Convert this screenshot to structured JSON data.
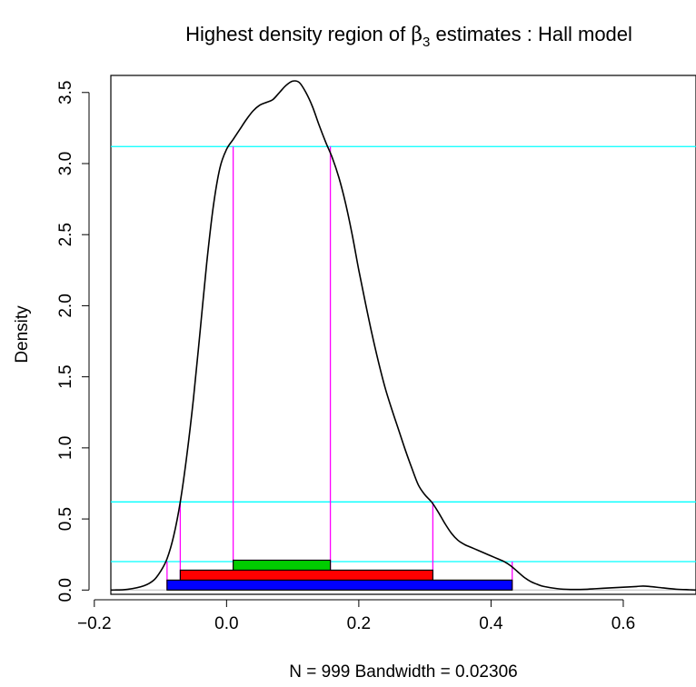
{
  "chart_data": {
    "type": "area",
    "title_main": "Highest density region of ",
    "title_symbol": "β",
    "title_subscript": "3",
    "title_rest": " estimates : Hall model",
    "xlabel": "N = 999   Bandwidth = 0.02306",
    "ylabel": "Density",
    "xlim": [
      -0.175,
      0.71
    ],
    "ylim": [
      -0.03,
      3.62
    ],
    "x_ticks": [
      -0.2,
      0.0,
      0.2,
      0.4,
      0.6
    ],
    "x_tick_labels": [
      "−0.2",
      "0.0",
      "0.2",
      "0.4",
      "0.6"
    ],
    "y_ticks": [
      0.0,
      0.5,
      1.0,
      1.5,
      2.0,
      2.5,
      3.0,
      3.5
    ],
    "y_tick_labels": [
      "0.0",
      "0.5",
      "1.0",
      "1.5",
      "2.0",
      "2.5",
      "3.0",
      "3.5"
    ],
    "density_curve": {
      "x": [
        -0.175,
        -0.15,
        -0.125,
        -0.11,
        -0.1,
        -0.09,
        -0.08,
        -0.07,
        -0.06,
        -0.05,
        -0.04,
        -0.03,
        -0.02,
        -0.01,
        0.0,
        0.01,
        0.02,
        0.03,
        0.04,
        0.05,
        0.06,
        0.07,
        0.08,
        0.09,
        0.1,
        0.11,
        0.12,
        0.13,
        0.14,
        0.15,
        0.16,
        0.17,
        0.18,
        0.19,
        0.2,
        0.21,
        0.22,
        0.23,
        0.24,
        0.25,
        0.26,
        0.27,
        0.28,
        0.29,
        0.3,
        0.31,
        0.32,
        0.33,
        0.34,
        0.35,
        0.36,
        0.37,
        0.38,
        0.39,
        0.4,
        0.41,
        0.42,
        0.43,
        0.44,
        0.45,
        0.46,
        0.47,
        0.48,
        0.5,
        0.52,
        0.54,
        0.56,
        0.58,
        0.6,
        0.62,
        0.63,
        0.64,
        0.66,
        0.68,
        0.7,
        0.71
      ],
      "y": [
        0.0,
        0.005,
        0.03,
        0.07,
        0.13,
        0.22,
        0.38,
        0.62,
        0.95,
        1.35,
        1.82,
        2.3,
        2.7,
        2.97,
        3.1,
        3.17,
        3.24,
        3.31,
        3.37,
        3.41,
        3.43,
        3.45,
        3.5,
        3.55,
        3.58,
        3.57,
        3.5,
        3.4,
        3.27,
        3.15,
        3.04,
        2.9,
        2.72,
        2.5,
        2.25,
        2.02,
        1.8,
        1.6,
        1.42,
        1.27,
        1.13,
        0.99,
        0.86,
        0.74,
        0.67,
        0.62,
        0.55,
        0.47,
        0.4,
        0.35,
        0.32,
        0.3,
        0.28,
        0.26,
        0.24,
        0.22,
        0.2,
        0.17,
        0.13,
        0.09,
        0.06,
        0.04,
        0.025,
        0.01,
        0.004,
        0.005,
        0.01,
        0.015,
        0.02,
        0.025,
        0.028,
        0.025,
        0.015,
        0.006,
        0.002,
        0.0
      ]
    },
    "hdr_levels": [
      3.12,
      0.62,
      0.2
    ],
    "hdr_regions": [
      {
        "level": 0.2,
        "start": -0.09,
        "end": 0.432,
        "color": "#0000ff",
        "bar_bottom": 0.0,
        "bar_top": 0.07
      },
      {
        "level": 0.62,
        "start": -0.07,
        "end": 0.312,
        "color": "#ff0000",
        "bar_bottom": 0.07,
        "bar_top": 0.14
      },
      {
        "level": 3.12,
        "start": 0.01,
        "end": 0.157,
        "color": "#00cd00",
        "bar_bottom": 0.14,
        "bar_top": 0.21
      }
    ],
    "hdr_level_color": "#00ffff",
    "hdr_bound_color": "#ff00ff",
    "baseline_color": "#bebebe",
    "curve_color": "#000000",
    "grid": false,
    "legend": "none"
  }
}
